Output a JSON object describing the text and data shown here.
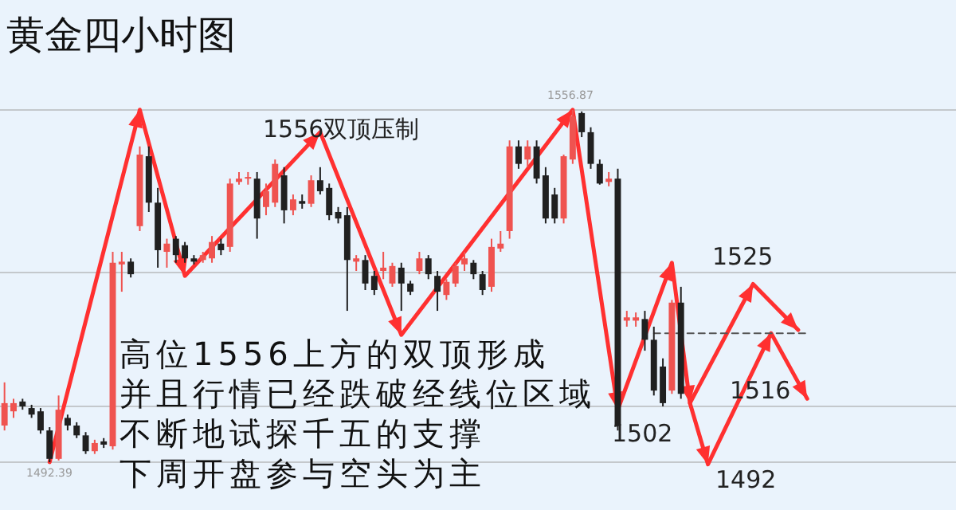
{
  "chart_data": {
    "type": "candlestick",
    "title": "黄金四小时图",
    "annotations": [
      "1556双顶压制",
      "1556.87",
      "1492.39",
      "高位1556上方的双顶形成",
      "并且行情已经跌破经线位区域",
      "不断地试探千五的支撑",
      "下周开盘参与空头为主",
      "1525",
      "1516",
      "1502",
      "1492"
    ],
    "categories": [
      null,
      null,
      null,
      null,
      null,
      null,
      null,
      null,
      null,
      null,
      null,
      null,
      null,
      null,
      null,
      null,
      null,
      null,
      null,
      null,
      null,
      null,
      null,
      null,
      null,
      null,
      null,
      null,
      null,
      null,
      null,
      null,
      null,
      null,
      null,
      null,
      null,
      null,
      null,
      null,
      null,
      null,
      null,
      null,
      null,
      null,
      null,
      null,
      null,
      null,
      null,
      null,
      null,
      null,
      null,
      null,
      null,
      null,
      null,
      null,
      null,
      null,
      null,
      null,
      null,
      null,
      null,
      null,
      null,
      null,
      null,
      null,
      null,
      null,
      null,
      null,
      null,
      null,
      null,
      null,
      null,
      null,
      null,
      null,
      null,
      null,
      null,
      null,
      null,
      null,
      null,
      null,
      null,
      null,
      null,
      null,
      null,
      null,
      null,
      null,
      null,
      null,
      null,
      null,
      null,
      null
    ],
    "ohlc": [
      [
        1499.1,
        1507.0,
        1498.2,
        1503.2
      ],
      [
        1501.7,
        1504.0,
        1500.5,
        1503.2
      ],
      [
        1503.5,
        1504.0,
        1502.0,
        1502.6
      ],
      [
        1502.3,
        1502.9,
        1500.5,
        1501.1
      ],
      [
        1501.7,
        1502.3,
        1497.6,
        1498.2
      ],
      [
        1498.2,
        1498.8,
        1492.39,
        1493.0
      ],
      [
        1493.0,
        1504.6,
        1492.7,
        1502.0
      ],
      [
        1500.5,
        1501.1,
        1498.2,
        1499.1
      ],
      [
        1499.1,
        1499.7,
        1496.8,
        1497.3
      ],
      [
        1497.3,
        1497.9,
        1493.9,
        1494.4
      ],
      [
        1494.4,
        1496.5,
        1493.9,
        1495.9
      ],
      [
        1496.2,
        1496.8,
        1495.0,
        1495.6
      ],
      [
        1495.3,
        1530.9,
        1494.7,
        1528.9
      ],
      [
        1528.6,
        1530.9,
        1523.6,
        1529.1
      ],
      [
        1529.1,
        1529.7,
        1526.2,
        1526.8
      ],
      [
        1535.6,
        1550.2,
        1534.7,
        1548.7
      ],
      [
        1548.4,
        1550.2,
        1538.2,
        1539.9
      ],
      [
        1539.9,
        1542.6,
        1528.0,
        1531.2
      ],
      [
        1530.9,
        1533.3,
        1528.0,
        1532.4
      ],
      [
        1533.3,
        1533.8,
        1528.9,
        1530.3
      ],
      [
        1532.1,
        1532.7,
        1528.9,
        1529.7
      ],
      [
        1529.7,
        1530.3,
        1528.6,
        1529.1
      ],
      [
        1529.4,
        1530.9,
        1528.9,
        1530.3
      ],
      [
        1529.7,
        1533.8,
        1528.9,
        1532.7
      ],
      [
        1532.4,
        1533.3,
        1530.3,
        1531.2
      ],
      [
        1531.8,
        1544.3,
        1530.9,
        1543.4
      ],
      [
        1543.7,
        1545.5,
        1543.2,
        1544.3
      ],
      [
        1544.3,
        1545.5,
        1543.2,
        1544.6
      ],
      [
        1544.3,
        1545.5,
        1533.3,
        1537.0
      ],
      [
        1539.1,
        1543.4,
        1537.6,
        1542.0
      ],
      [
        1539.9,
        1547.8,
        1539.1,
        1547.0
      ],
      [
        1544.9,
        1546.4,
        1536.1,
        1538.5
      ],
      [
        1538.5,
        1541.4,
        1537.6,
        1540.5
      ],
      [
        1540.2,
        1541.4,
        1538.8,
        1539.7
      ],
      [
        1539.7,
        1544.9,
        1539.1,
        1544.0
      ],
      [
        1544.0,
        1546.4,
        1541.4,
        1542.0
      ],
      [
        1542.6,
        1543.4,
        1536.7,
        1537.6
      ],
      [
        1538.2,
        1539.1,
        1536.1,
        1537.0
      ],
      [
        1537.6,
        1539.1,
        1520.1,
        1529.4
      ],
      [
        1529.1,
        1530.3,
        1527.4,
        1529.7
      ],
      [
        1529.4,
        1530.3,
        1523.9,
        1525.1
      ],
      [
        1526.5,
        1527.4,
        1523.0,
        1523.9
      ],
      [
        1527.4,
        1530.9,
        1525.9,
        1528.0
      ],
      [
        1525.1,
        1528.9,
        1524.5,
        1528.3
      ],
      [
        1528.0,
        1528.9,
        1520.1,
        1525.1
      ],
      [
        1525.1,
        1525.6,
        1523.0,
        1523.6
      ],
      [
        1527.4,
        1530.9,
        1526.8,
        1529.7
      ],
      [
        1529.7,
        1530.3,
        1525.9,
        1526.8
      ],
      [
        1526.5,
        1527.4,
        1520.1,
        1523.6
      ],
      [
        1523.0,
        1525.9,
        1522.1,
        1525.4
      ],
      [
        1525.1,
        1528.9,
        1524.5,
        1528.3
      ],
      [
        1528.6,
        1530.9,
        1527.4,
        1529.7
      ],
      [
        1528.9,
        1529.4,
        1525.9,
        1526.8
      ],
      [
        1526.8,
        1527.4,
        1523.0,
        1523.9
      ],
      [
        1524.5,
        1533.3,
        1523.6,
        1531.8
      ],
      [
        1531.5,
        1534.7,
        1530.9,
        1532.4
      ],
      [
        1534.7,
        1551.3,
        1533.3,
        1550.2
      ],
      [
        1550.2,
        1551.3,
        1546.1,
        1547.0
      ],
      [
        1547.8,
        1551.3,
        1546.4,
        1550.2
      ],
      [
        1550.2,
        1551.3,
        1543.4,
        1544.3
      ],
      [
        1544.9,
        1546.4,
        1536.1,
        1537.0
      ],
      [
        1541.4,
        1542.6,
        1536.1,
        1537.0
      ],
      [
        1537.0,
        1548.7,
        1536.1,
        1548.4
      ],
      [
        1547.8,
        1556.87,
        1547.0,
        1555.7
      ],
      [
        1556.3,
        1556.6,
        1551.9,
        1552.8
      ],
      [
        1552.8,
        1553.7,
        1546.1,
        1547.0
      ],
      [
        1547.0,
        1547.8,
        1543.2,
        1543.4
      ],
      [
        1543.7,
        1545.5,
        1542.9,
        1544.3
      ],
      [
        1544.3,
        1546.1,
        1498.2,
        1499.1
      ],
      [
        1518.3,
        1520.1,
        1517.2,
        1518.9
      ],
      [
        1518.3,
        1519.8,
        1517.2,
        1518.9
      ],
      [
        1518.6,
        1520.1,
        1512.8,
        1514.8
      ],
      [
        1514.8,
        1517.2,
        1504.6,
        1505.5
      ],
      [
        1509.9,
        1511.4,
        1502.6,
        1503.2
      ],
      [
        1505.5,
        1522.1,
        1504.9,
        1521.6
      ],
      [
        1521.6,
        1524.5,
        1504.0,
        1504.9
      ],
      null,
      null,
      null,
      null,
      null,
      null,
      null,
      null,
      null,
      null,
      null,
      null,
      null,
      null,
      null,
      null,
      null,
      null,
      null,
      null,
      null,
      null,
      null,
      null,
      null,
      null,
      null,
      null,
      null,
      null
    ],
    "colors": [
      "#ef5350",
      "#ef5350",
      "#202020",
      "#202020",
      "#202020",
      "#202020",
      "#ef5350",
      "#202020",
      "#202020",
      "#202020",
      "#ef5350",
      "#202020",
      "#ef5350",
      "#ef5350",
      "#202020",
      "#ef5350",
      "#202020",
      "#202020",
      "#ef5350",
      "#202020",
      "#202020",
      "#202020",
      "#ef5350",
      "#ef5350",
      "#202020",
      "#ef5350",
      "#ef5350",
      "#ef5350",
      "#202020",
      "#ef5350",
      "#ef5350",
      "#202020",
      "#ef5350",
      "#202020",
      "#ef5350",
      "#202020",
      "#202020",
      "#202020",
      "#202020",
      "#ef5350",
      "#202020",
      "#202020",
      "#ef5350",
      "#ef5350",
      "#202020",
      "#202020",
      "#ef5350",
      "#202020",
      "#202020",
      "#ef5350",
      "#ef5350",
      "#ef5350",
      "#202020",
      "#202020",
      "#ef5350",
      "#ef5350",
      "#ef5350",
      "#202020",
      "#ef5350",
      "#202020",
      "#202020",
      "#202020",
      "#ef5350",
      "#ef5350",
      "#202020",
      "#202020",
      "#202020",
      "#ef5350",
      "#202020",
      "#ef5350",
      "#ef5350",
      "#202020",
      "#202020",
      "#202020",
      "#ef5350",
      "#202020",
      null,
      null,
      null,
      null,
      null,
      null,
      null,
      null,
      null,
      null,
      null,
      null,
      null,
      null,
      null,
      null,
      null,
      null,
      null,
      null,
      null,
      null,
      null,
      null,
      null,
      null,
      null,
      null,
      null,
      null
    ],
    "series": [
      {
        "type": "line",
        "color": "#ff3030",
        "line_style": "solid",
        "values": [
          null,
          null,
          null,
          null,
          null,
          1492.4,
          null,
          null,
          null,
          null,
          null,
          null,
          null,
          null,
          null,
          1556.9,
          null,
          null,
          null,
          null,
          1526.5,
          null,
          null,
          null,
          null,
          null,
          null,
          null,
          null,
          null,
          null,
          null,
          null,
          null,
          null,
          1552.8,
          null,
          null,
          null,
          null,
          null,
          null,
          null,
          null,
          1515.7,
          null,
          null,
          null,
          null,
          null,
          null,
          null,
          null,
          null,
          null,
          null,
          null,
          null,
          null,
          null,
          null,
          null,
          null,
          1556.9,
          null,
          null,
          null,
          null,
          1502,
          null,
          null,
          null,
          null,
          null,
          1528.9,
          null,
          1503.2,
          null,
          null,
          null,
          null,
          null,
          null,
          1525,
          null,
          null,
          null,
          null,
          1516.6,
          null,
          null,
          null,
          null,
          null,
          null,
          null,
          null,
          null,
          null,
          null,
          null,
          null,
          null,
          null,
          null,
          null
        ]
      },
      {
        "type": "line",
        "color": "#ff3030",
        "line_style": "solid",
        "values": [
          null,
          null,
          null,
          null,
          null,
          null,
          null,
          null,
          null,
          null,
          null,
          null,
          null,
          null,
          null,
          null,
          null,
          null,
          null,
          null,
          null,
          null,
          null,
          null,
          null,
          null,
          null,
          null,
          null,
          null,
          null,
          null,
          null,
          null,
          null,
          null,
          null,
          null,
          null,
          null,
          null,
          null,
          null,
          null,
          null,
          null,
          null,
          null,
          null,
          null,
          null,
          null,
          null,
          null,
          null,
          null,
          null,
          null,
          null,
          null,
          null,
          null,
          null,
          null,
          null,
          null,
          null,
          null,
          null,
          null,
          null,
          null,
          null,
          null,
          null,
          null,
          1503.2,
          null,
          1492,
          null,
          null,
          null,
          null,
          null,
          null,
          1516,
          null,
          null,
          null,
          1504,
          null,
          null,
          null,
          null,
          null,
          null,
          null,
          null,
          null,
          null,
          null,
          null,
          null,
          null,
          null,
          null
        ]
      },
      {
        "type": "line",
        "color": "#555555",
        "line_style": "dashed",
        "values": [
          null,
          null,
          null,
          null,
          null,
          null,
          null,
          null,
          null,
          null,
          null,
          null,
          null,
          null,
          null,
          null,
          null,
          null,
          null,
          null,
          null,
          null,
          null,
          null,
          null,
          null,
          null,
          null,
          null,
          null,
          null,
          null,
          null,
          null,
          null,
          null,
          null,
          null,
          null,
          null,
          null,
          null,
          null,
          null,
          null,
          null,
          null,
          null,
          null,
          null,
          null,
          null,
          null,
          null,
          null,
          null,
          null,
          null,
          null,
          null,
          null,
          null,
          null,
          null,
          null,
          null,
          null,
          null,
          null,
          null,
          null,
          null,
          1516,
          null,
          null,
          null,
          null,
          null,
          null,
          null,
          null,
          null,
          null,
          null,
          null,
          null,
          null,
          null,
          null,
          1516,
          null,
          null,
          null,
          null,
          null,
          null,
          null,
          null,
          null,
          null,
          null,
          null,
          null,
          null,
          null,
          null
        ]
      }
    ],
    "yticks": [
      {
        "value": 1492.39,
        "label": null
      },
      {
        "value": 1502.6,
        "label": null
      },
      {
        "value": 1527.1,
        "label": null
      },
      {
        "value": 1556.87,
        "label": null
      }
    ],
    "grid": "y"
  }
}
